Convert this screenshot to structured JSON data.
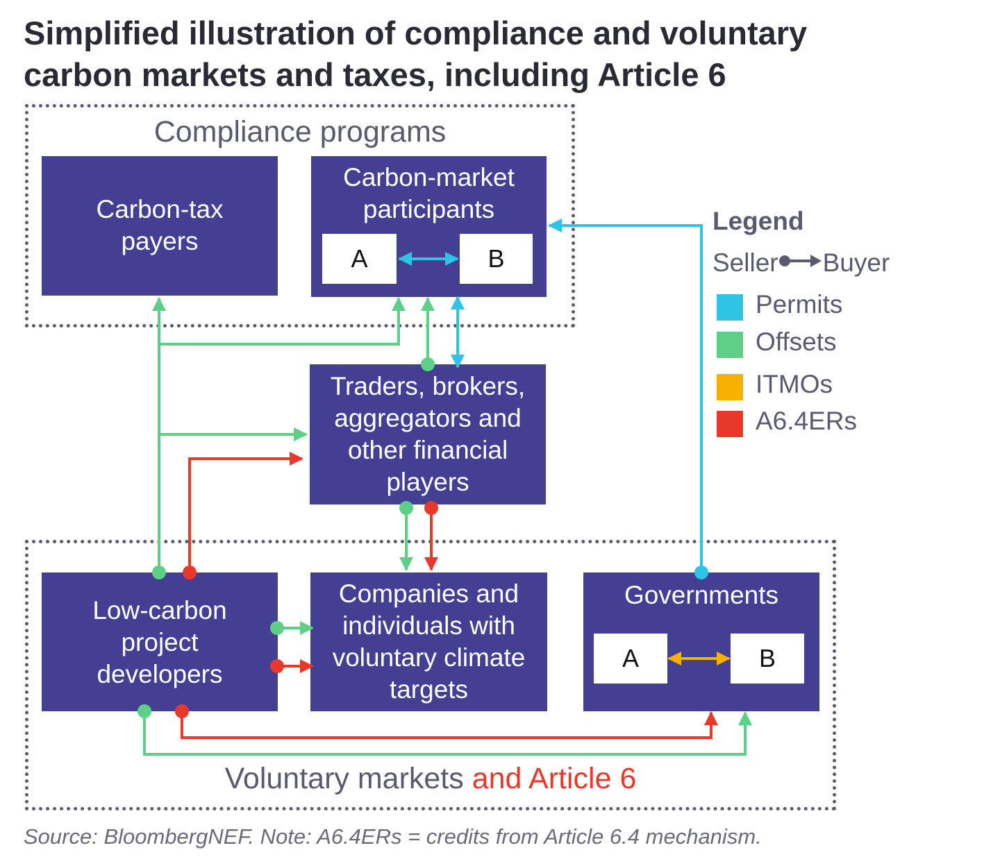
{
  "title": {
    "line1": "Simplified illustration of compliance and voluntary",
    "line2": "carbon markets and taxes, including Article 6"
  },
  "regions": {
    "compliance": "Compliance programs",
    "voluntary": "Voluntary markets",
    "voluntary_suffix": "and Article 6"
  },
  "boxes": {
    "carbon_tax": {
      "line1": "Carbon-tax",
      "line2": "payers"
    },
    "carbon_market": {
      "line1": "Carbon-market",
      "line2": "participants",
      "party_a": "A",
      "party_b": "B"
    },
    "traders": {
      "line1": "Traders, brokers,",
      "line2": "aggregators and",
      "line3": "other financial",
      "line4": "players"
    },
    "developers": {
      "line1": "Low-carbon",
      "line2": "project",
      "line3": "developers"
    },
    "companies": {
      "line1": "Companies and",
      "line2": "individuals with",
      "line3": "voluntary climate",
      "line4": "targets"
    },
    "governments": {
      "line1": "Governments",
      "party_a": "A",
      "party_b": "B"
    }
  },
  "legend": {
    "title": "Legend",
    "seller": "Seller",
    "buyer": "Buyer",
    "items": [
      {
        "label": "Permits",
        "color": "#2ec4e6"
      },
      {
        "label": "Offsets",
        "color": "#5dcf86"
      },
      {
        "label": "ITMOs",
        "color": "#f6b100"
      },
      {
        "label": "A6.4ERs",
        "color": "#e8382b"
      }
    ]
  },
  "colors": {
    "box": "#433f93",
    "permits": "#2ec4e6",
    "offsets": "#5dcf86",
    "itmos": "#f6b100",
    "a64ers": "#e8382b",
    "article6_text": "#e8382b"
  },
  "source": "Source: BloombergNEF. Note: A6.4ERs = credits from Article 6.4 mechanism."
}
